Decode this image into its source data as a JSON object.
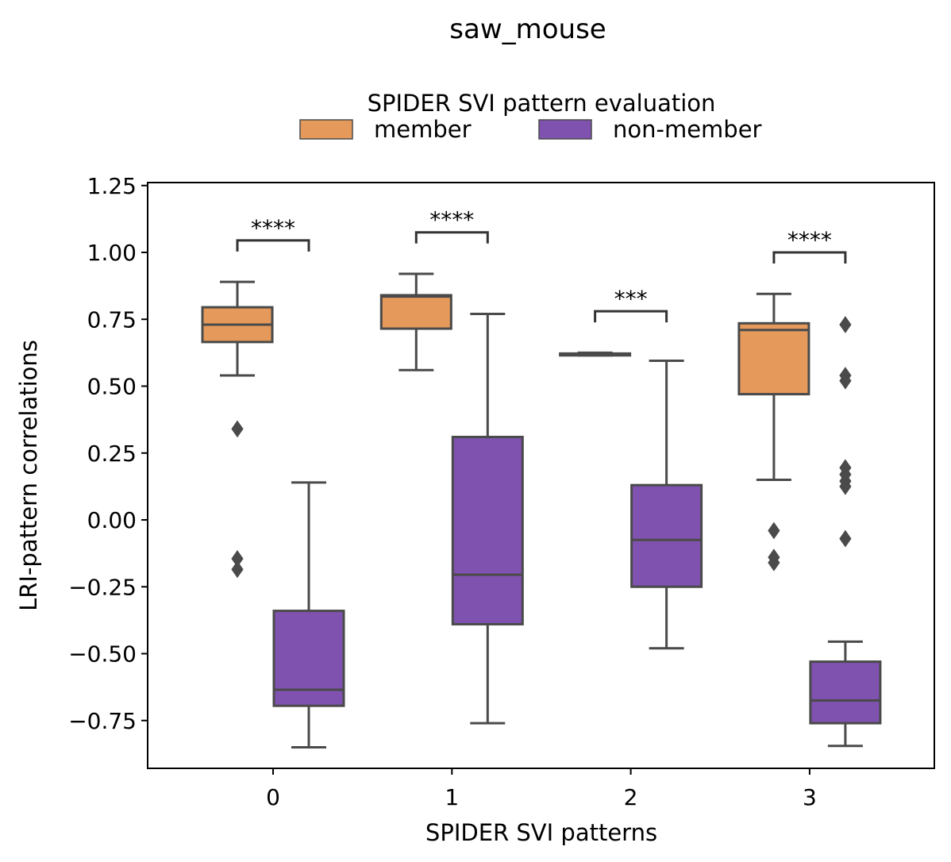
{
  "chart_data": {
    "type": "box",
    "title": "saw_mouse",
    "xlabel": "SPIDER SVI patterns",
    "ylabel": "LRI-pattern correlations",
    "categories": [
      "0",
      "1",
      "2",
      "3"
    ],
    "ylim": [
      -0.93,
      1.27
    ],
    "yticks": [
      1.25,
      1.0,
      0.75,
      0.5,
      0.25,
      0.0,
      -0.25,
      -0.5,
      -0.75
    ],
    "ytick_labels": [
      "1.25",
      "1.00",
      "0.75",
      "0.50",
      "0.25",
      "0.00",
      "−0.25",
      "−0.50",
      "−0.75"
    ],
    "grid": false,
    "legend": {
      "title": "SPIDER SVI pattern evaluation",
      "placement": "top-center"
    },
    "series": [
      {
        "name": "member",
        "color": "#e59a5c",
        "boxes": [
          {
            "whislo": 0.54,
            "q1": 0.665,
            "med": 0.73,
            "q3": 0.795,
            "whishi": 0.89,
            "fliers": [
              0.34,
              -0.145,
              -0.185
            ]
          },
          {
            "whislo": 0.56,
            "q1": 0.715,
            "med": 0.835,
            "q3": 0.84,
            "whishi": 0.92,
            "fliers": []
          },
          {
            "whislo": 0.615,
            "q1": 0.615,
            "med": 0.62,
            "q3": 0.622,
            "whishi": 0.625,
            "fliers": []
          },
          {
            "whislo": 0.15,
            "q1": 0.47,
            "med": 0.71,
            "q3": 0.735,
            "whishi": 0.845,
            "fliers": [
              -0.04,
              -0.14,
              -0.16
            ]
          }
        ]
      },
      {
        "name": "non-member",
        "color": "#8052b0",
        "boxes": [
          {
            "whislo": -0.85,
            "q1": -0.695,
            "med": -0.635,
            "q3": -0.34,
            "whishi": 0.14,
            "fliers": []
          },
          {
            "whislo": -0.76,
            "q1": -0.39,
            "med": -0.205,
            "q3": 0.31,
            "whishi": 0.77,
            "fliers": []
          },
          {
            "whislo": -0.48,
            "q1": -0.25,
            "med": -0.075,
            "q3": 0.13,
            "whishi": 0.595,
            "fliers": []
          },
          {
            "whislo": -0.845,
            "q1": -0.76,
            "med": -0.675,
            "q3": -0.53,
            "whishi": -0.455,
            "fliers": [
              0.73,
              0.54,
              0.52,
              0.195,
              0.17,
              0.145,
              0.125,
              -0.07
            ]
          }
        ]
      }
    ],
    "annotations": [
      {
        "category": "0",
        "text": "****",
        "y": 1.045
      },
      {
        "category": "1",
        "text": "****",
        "y": 1.075
      },
      {
        "category": "2",
        "text": "***",
        "y": 0.78
      },
      {
        "category": "3",
        "text": "****",
        "y": 1.0
      }
    ]
  }
}
